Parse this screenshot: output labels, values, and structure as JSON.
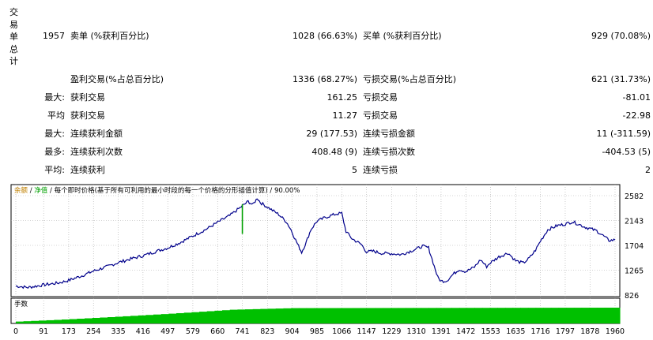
{
  "section_label": "交易单总计",
  "summary": {
    "total": "1957",
    "short_label": "卖单 (%获利百分比)",
    "short_value": "1028 (66.63%)",
    "long_label": "买单 (%获利百分比)",
    "long_value": "929 (70.08%)"
  },
  "rows": [
    {
      "prefix": "",
      "left_label": "盈利交易(%占总百分比)",
      "left_value": "1336 (68.27%)",
      "right_label": "亏损交易(%占总百分比)",
      "right_value": "621 (31.73%)"
    },
    {
      "prefix": "最大:",
      "left_label": "获利交易",
      "left_value": "161.25",
      "right_label": "亏损交易",
      "right_value": "-81.01"
    },
    {
      "prefix": "平均",
      "left_label": "获利交易",
      "left_value": "11.27",
      "right_label": "亏损交易",
      "right_value": "-22.98"
    },
    {
      "prefix": "最大:",
      "left_label": "连续获利金额",
      "left_value": "29 (177.53)",
      "right_label": "连续亏损金额",
      "right_value": "11 (-311.59)"
    },
    {
      "prefix": "最多:",
      "left_label": "连续获利次数",
      "left_value": "408.48 (9)",
      "right_label": "连续亏损次数",
      "right_value": "-404.53 (5)"
    },
    {
      "prefix": "平均:",
      "left_label": "连续获利",
      "left_value": "5",
      "right_label": "连续亏损",
      "right_value": "2"
    }
  ],
  "chart_data": {
    "type": "line",
    "legend": {
      "balance": "余额",
      "equity": "净值",
      "desc": "每个即时价格(基于所有可利用的最小时段的每一个价格的分形插值计算)",
      "quality": "90.00%"
    },
    "colors": {
      "balance": "#00008b",
      "equity": "#00a000",
      "volume": "#00c000",
      "legend_balance": "#c08000",
      "legend_equity": "#00a000"
    },
    "y_ticks": [
      "2582",
      "2143",
      "1704",
      "1265",
      "826"
    ],
    "ylim": [
      826,
      2582
    ],
    "x_ticks": [
      "0",
      "91",
      "173",
      "254",
      "335",
      "416",
      "497",
      "579",
      "660",
      "741",
      "823",
      "904",
      "985",
      "1066",
      "1147",
      "1229",
      "1310",
      "1391",
      "1472",
      "1553",
      "1635",
      "1716",
      "1797",
      "1878",
      "1960"
    ],
    "xlim": [
      0,
      1960
    ],
    "volume_label": "手数",
    "series": [
      {
        "values_xy": [
          [
            0,
            985
          ],
          [
            40,
            960
          ],
          [
            91,
            1005
          ],
          [
            140,
            1040
          ],
          [
            173,
            1085
          ],
          [
            220,
            1175
          ],
          [
            254,
            1250
          ],
          [
            300,
            1330
          ],
          [
            335,
            1400
          ],
          [
            380,
            1470
          ],
          [
            416,
            1520
          ],
          [
            460,
            1600
          ],
          [
            497,
            1660
          ],
          [
            540,
            1760
          ],
          [
            579,
            1870
          ],
          [
            620,
            1980
          ],
          [
            660,
            2110
          ],
          [
            700,
            2230
          ],
          [
            741,
            2400
          ],
          [
            760,
            2480
          ],
          [
            775,
            2420
          ],
          [
            790,
            2540
          ],
          [
            800,
            2460
          ],
          [
            823,
            2380
          ],
          [
            860,
            2250
          ],
          [
            885,
            2120
          ],
          [
            900,
            1980
          ],
          [
            915,
            1800
          ],
          [
            925,
            1690
          ],
          [
            935,
            1580
          ],
          [
            950,
            1760
          ],
          [
            965,
            1980
          ],
          [
            985,
            2130
          ],
          [
            1010,
            2190
          ],
          [
            1030,
            2230
          ],
          [
            1050,
            2260
          ],
          [
            1066,
            2270
          ],
          [
            1080,
            1950
          ],
          [
            1100,
            1820
          ],
          [
            1130,
            1720
          ],
          [
            1147,
            1590
          ],
          [
            1170,
            1600
          ],
          [
            1200,
            1560
          ],
          [
            1229,
            1560
          ],
          [
            1260,
            1540
          ],
          [
            1290,
            1600
          ],
          [
            1310,
            1640
          ],
          [
            1330,
            1690
          ],
          [
            1350,
            1660
          ],
          [
            1365,
            1400
          ],
          [
            1380,
            1140
          ],
          [
            1391,
            1070
          ],
          [
            1410,
            1080
          ],
          [
            1430,
            1190
          ],
          [
            1450,
            1280
          ],
          [
            1472,
            1240
          ],
          [
            1500,
            1320
          ],
          [
            1520,
            1450
          ],
          [
            1540,
            1330
          ],
          [
            1553,
            1400
          ],
          [
            1580,
            1500
          ],
          [
            1610,
            1570
          ],
          [
            1635,
            1430
          ],
          [
            1660,
            1390
          ],
          [
            1680,
            1480
          ],
          [
            1700,
            1620
          ],
          [
            1716,
            1780
          ],
          [
            1740,
            1980
          ],
          [
            1770,
            2050
          ],
          [
            1797,
            2080
          ],
          [
            1820,
            2120
          ],
          [
            1840,
            2080
          ],
          [
            1860,
            2030
          ],
          [
            1878,
            2000
          ],
          [
            1900,
            1960
          ],
          [
            1920,
            1880
          ],
          [
            1940,
            1790
          ],
          [
            1960,
            1800
          ]
        ]
      }
    ],
    "equity_spike": {
      "x": 741,
      "low": 1905,
      "high": 2430
    },
    "volume": [
      [
        0,
        0.12
      ],
      [
        120,
        0.22
      ],
      [
        300,
        0.4
      ],
      [
        500,
        0.62
      ],
      [
        700,
        0.87
      ],
      [
        900,
        0.97
      ],
      [
        1960,
        1.0
      ]
    ]
  }
}
